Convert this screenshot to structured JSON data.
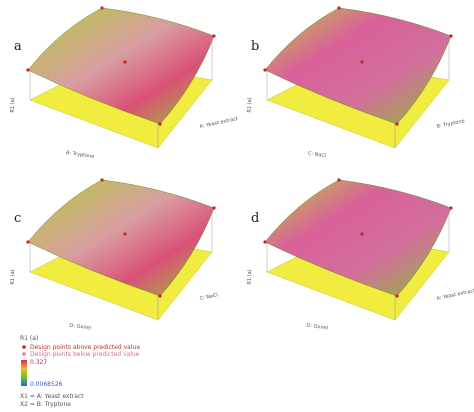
{
  "panels": [
    {
      "label": "a",
      "z_label": "R1 (a)",
      "x_label": "B: Tryptone",
      "y_label": "A: Yeast extract"
    },
    {
      "label": "b",
      "z_label": "R1 (a)",
      "x_label": "C: NaCl",
      "y_label": "B: Tryptone"
    },
    {
      "label": "c",
      "z_label": "R1 (a)",
      "x_label": "D: Oxirel",
      "y_label": "C: NaCl"
    },
    {
      "label": "d",
      "z_label": "R1 (a)",
      "x_label": "D: Oxirel",
      "y_label": "A: Yeast extract"
    }
  ],
  "legend": {
    "title": "R1 (a)",
    "above": "Design points above predicted value",
    "below": "Design points below predicted value",
    "high": "0.327",
    "low": "0.0068526",
    "x1": "X1 = A: Yeast extract",
    "x2": "X2 = B: Tryptone"
  }
}
